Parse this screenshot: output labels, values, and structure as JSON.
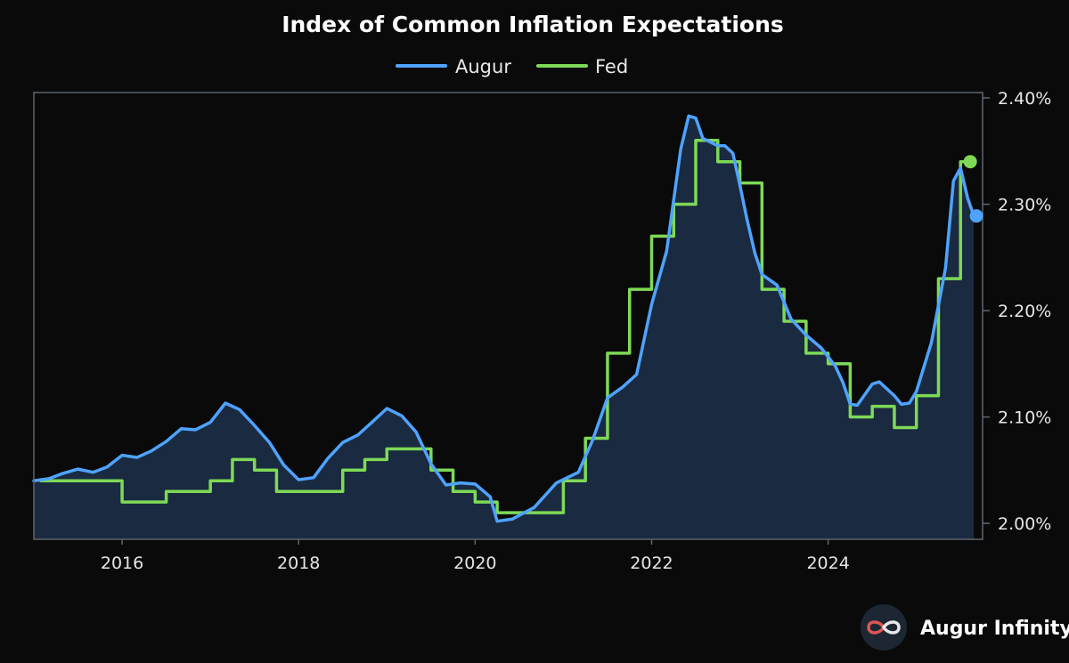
{
  "chart_data": {
    "type": "line",
    "title": "Index of Common Inflation Expectations",
    "xlabel": "",
    "ylabel": "",
    "x_ticks": [
      "2016",
      "2018",
      "2020",
      "2022",
      "2024"
    ],
    "y_ticks": [
      "2.00%",
      "2.10%",
      "2.20%",
      "2.30%",
      "2.40%"
    ],
    "ylim": [
      1.985,
      2.405
    ],
    "xlim": [
      2015.0,
      2025.75
    ],
    "grid": false,
    "legend_position": "top-center",
    "y_axis_side": "right",
    "series": [
      {
        "name": "Augur",
        "color": "#4ea3ff",
        "fill": "#1a2a40",
        "step": false,
        "marker_at_end": true,
        "points": [
          [
            2015.0,
            2.04
          ],
          [
            2015.17,
            2.042
          ],
          [
            2015.33,
            2.047
          ],
          [
            2015.5,
            2.051
          ],
          [
            2015.67,
            2.048
          ],
          [
            2015.83,
            2.053
          ],
          [
            2016.0,
            2.064
          ],
          [
            2016.17,
            2.062
          ],
          [
            2016.33,
            2.068
          ],
          [
            2016.5,
            2.077
          ],
          [
            2016.67,
            2.089
          ],
          [
            2016.83,
            2.088
          ],
          [
            2017.0,
            2.095
          ],
          [
            2017.17,
            2.113
          ],
          [
            2017.33,
            2.107
          ],
          [
            2017.5,
            2.092
          ],
          [
            2017.67,
            2.076
          ],
          [
            2017.83,
            2.055
          ],
          [
            2018.0,
            2.041
          ],
          [
            2018.17,
            2.043
          ],
          [
            2018.33,
            2.061
          ],
          [
            2018.5,
            2.076
          ],
          [
            2018.67,
            2.083
          ],
          [
            2018.83,
            2.095
          ],
          [
            2019.0,
            2.108
          ],
          [
            2019.17,
            2.101
          ],
          [
            2019.33,
            2.086
          ],
          [
            2019.5,
            2.056
          ],
          [
            2019.67,
            2.036
          ],
          [
            2019.83,
            2.038
          ],
          [
            2020.0,
            2.037
          ],
          [
            2020.17,
            2.025
          ],
          [
            2020.25,
            2.002
          ],
          [
            2020.42,
            2.004
          ],
          [
            2020.67,
            2.015
          ],
          [
            2020.92,
            2.038
          ],
          [
            2021.17,
            2.048
          ],
          [
            2021.33,
            2.078
          ],
          [
            2021.5,
            2.118
          ],
          [
            2021.67,
            2.128
          ],
          [
            2021.83,
            2.14
          ],
          [
            2022.0,
            2.206
          ],
          [
            2022.17,
            2.256
          ],
          [
            2022.33,
            2.352
          ],
          [
            2022.42,
            2.383
          ],
          [
            2022.5,
            2.381
          ],
          [
            2022.58,
            2.362
          ],
          [
            2022.75,
            2.355
          ],
          [
            2022.83,
            2.355
          ],
          [
            2022.92,
            2.348
          ],
          [
            2023.0,
            2.318
          ],
          [
            2023.08,
            2.286
          ],
          [
            2023.17,
            2.254
          ],
          [
            2023.25,
            2.234
          ],
          [
            2023.42,
            2.224
          ],
          [
            2023.58,
            2.192
          ],
          [
            2023.75,
            2.177
          ],
          [
            2023.92,
            2.165
          ],
          [
            2024.08,
            2.148
          ],
          [
            2024.17,
            2.132
          ],
          [
            2024.25,
            2.112
          ],
          [
            2024.33,
            2.111
          ],
          [
            2024.5,
            2.131
          ],
          [
            2024.58,
            2.133
          ],
          [
            2024.75,
            2.12
          ],
          [
            2024.83,
            2.112
          ],
          [
            2024.92,
            2.113
          ],
          [
            2025.0,
            2.124
          ],
          [
            2025.17,
            2.17
          ],
          [
            2025.33,
            2.24
          ],
          [
            2025.42,
            2.322
          ],
          [
            2025.5,
            2.334
          ],
          [
            2025.58,
            2.306
          ],
          [
            2025.65,
            2.289
          ]
        ]
      },
      {
        "name": "Fed",
        "color": "#7ed957",
        "step": true,
        "marker_at_end": true,
        "points": [
          [
            2015.08,
            2.04
          ],
          [
            2015.33,
            2.04
          ],
          [
            2015.58,
            2.04
          ],
          [
            2015.83,
            2.04
          ],
          [
            2016.0,
            2.02
          ],
          [
            2016.25,
            2.02
          ],
          [
            2016.5,
            2.03
          ],
          [
            2016.75,
            2.03
          ],
          [
            2017.0,
            2.04
          ],
          [
            2017.25,
            2.06
          ],
          [
            2017.5,
            2.05
          ],
          [
            2017.75,
            2.03
          ],
          [
            2018.0,
            2.03
          ],
          [
            2018.25,
            2.03
          ],
          [
            2018.5,
            2.05
          ],
          [
            2018.75,
            2.06
          ],
          [
            2019.0,
            2.07
          ],
          [
            2019.25,
            2.07
          ],
          [
            2019.5,
            2.05
          ],
          [
            2019.75,
            2.03
          ],
          [
            2020.0,
            2.02
          ],
          [
            2020.25,
            2.01
          ],
          [
            2020.5,
            2.01
          ],
          [
            2020.75,
            2.01
          ],
          [
            2021.0,
            2.04
          ],
          [
            2021.25,
            2.08
          ],
          [
            2021.5,
            2.16
          ],
          [
            2021.75,
            2.22
          ],
          [
            2022.0,
            2.27
          ],
          [
            2022.25,
            2.3
          ],
          [
            2022.5,
            2.36
          ],
          [
            2022.75,
            2.34
          ],
          [
            2023.0,
            2.32
          ],
          [
            2023.25,
            2.22
          ],
          [
            2023.5,
            2.19
          ],
          [
            2023.75,
            2.16
          ],
          [
            2024.0,
            2.15
          ],
          [
            2024.25,
            2.1
          ],
          [
            2024.5,
            2.11
          ],
          [
            2024.75,
            2.09
          ],
          [
            2025.0,
            2.12
          ],
          [
            2025.25,
            2.23
          ],
          [
            2025.5,
            2.34
          ],
          [
            2025.58,
            2.34
          ]
        ]
      }
    ]
  },
  "branding": {
    "name": "Augur Infinity",
    "logo_icon": "infinity-icon"
  },
  "colors": {
    "background": "#0a0a0b",
    "axis": "#5d656d",
    "area_fill": "#1a2a40"
  }
}
